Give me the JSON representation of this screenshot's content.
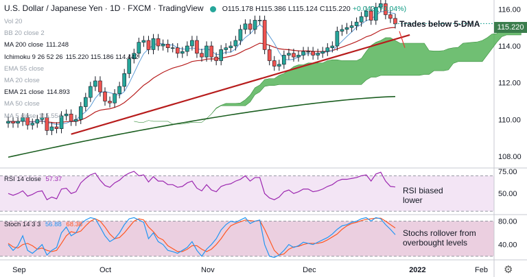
{
  "header": {
    "title": "U.S. Dollar / Japanese Yen · 1D · FXCM · TradingView",
    "open": "O115.178",
    "high": "H115.386",
    "low": "L115.124",
    "close": "C115.220",
    "change": "+0.042 (+0.04%)"
  },
  "indicators": [
    {
      "label": "Vol 20",
      "value": "",
      "faded": true
    },
    {
      "label": "BB 20 close 2",
      "value": "",
      "faded": true
    },
    {
      "label": "MA 200 close",
      "value": "111.248",
      "faded": false
    },
    {
      "label": "Ichimoku 9 26 52 26",
      "value": "115.220  115.186  114.442",
      "faded": false
    },
    {
      "label": "EMA 55 close",
      "value": "",
      "faded": true
    },
    {
      "label": "MA 20 close",
      "value": "",
      "faded": true
    },
    {
      "label": "EMA 21 close",
      "value": "114.893",
      "faded": false
    },
    {
      "label": "MA 50 close",
      "value": "",
      "faded": true
    },
    {
      "label": "MA 5 close",
      "value": "115.554",
      "faded": true
    }
  ],
  "rsi_label": "RSI 14 close",
  "rsi_value": "57.37",
  "stoch_label": "Stoch 14 3 3",
  "stoch_k": "56.88",
  "stoch_d": "68.38",
  "annotations": {
    "trades": "Trades below 5-DMA",
    "rsi1": "RSI biased",
    "rsi2": "lower",
    "stoch1": "Stochs rollover from",
    "stoch2": "overbought levels"
  },
  "last_price": "115.220",
  "colors": {
    "up": "#26a69a",
    "down": "#ef5350",
    "cloud": "#4caf50",
    "ma200": "#1b5e20",
    "ema21": "#b71c1c",
    "trendline": "#b71c1c",
    "rsi": "#9c27b0",
    "stoch_k": "#2196f3",
    "stoch_d": "#ff5722"
  },
  "chart_data": [
    {
      "type": "candlestick",
      "title": "U.S. Dollar / Japanese Yen · 1D · FXCM",
      "y_ticks": [
        108.0,
        110.0,
        112.0,
        114.0,
        116.0
      ],
      "ylim": [
        107.4,
        116.5
      ],
      "x_ticks": [
        "Sep",
        "Oct",
        "Nov",
        "Dec",
        "2022",
        "Feb"
      ],
      "close": [
        109.9,
        109.8,
        109.9,
        110.1,
        109.7,
        109.8,
        110.0,
        110.1,
        109.4,
        109.6,
        109.5,
        110.2,
        110.3,
        109.9,
        110.0,
        110.7,
        111.2,
        111.8,
        112.1,
        111.5,
        111.0,
        110.9,
        111.4,
        111.8,
        112.5,
        113.3,
        113.6,
        114.2,
        114.3,
        113.8,
        114.4,
        114.0,
        114.1,
        113.9,
        113.9,
        113.6,
        113.7,
        114.0,
        114.3,
        113.6,
        113.4,
        114.0,
        113.4,
        113.2,
        113.8,
        113.9,
        114.0,
        114.3,
        114.9,
        115.2,
        114.9,
        115.4,
        115.4,
        113.8,
        113.2,
        112.9,
        113.0,
        113.5,
        113.6,
        113.4,
        113.5,
        113.7,
        113.7,
        113.5,
        113.6,
        113.7,
        113.9,
        114.0,
        114.8,
        114.9,
        115.0,
        115.1,
        115.3,
        115.6,
        115.9,
        115.4,
        116.1,
        116.3,
        115.7,
        115.5,
        115.2
      ],
      "ema21_last": 114.893,
      "ma200_last": 111.248,
      "last": 115.22,
      "annotation": "Trades below 5-DMA"
    },
    {
      "type": "line",
      "title": "RSI 14 close",
      "y_ticks": [
        50.0,
        75.0
      ],
      "ylim": [
        27,
        78
      ],
      "values": [
        50,
        48,
        50,
        53,
        47,
        49,
        52,
        53,
        43,
        46,
        44,
        55,
        56,
        50,
        52,
        62,
        67,
        71,
        73,
        65,
        59,
        57,
        62,
        65,
        70,
        73,
        75,
        70,
        71,
        63,
        69,
        64,
        64,
        60,
        60,
        57,
        58,
        62,
        64,
        56,
        53,
        60,
        54,
        52,
        58,
        60,
        61,
        64,
        66,
        70,
        64,
        68,
        68,
        50,
        45,
        43,
        46,
        52,
        54,
        50,
        52,
        55,
        55,
        52,
        53,
        55,
        58,
        60,
        64,
        66,
        66,
        67,
        68,
        70,
        71,
        64,
        72,
        74,
        64,
        58,
        57.37
      ],
      "last": 57.37
    },
    {
      "type": "line",
      "title": "Stoch 14 3 3",
      "y_ticks": [
        40.0,
        80.0
      ],
      "ylim": [
        15,
        90
      ],
      "series": [
        {
          "name": "%K",
          "values": [
            40,
            30,
            38,
            55,
            30,
            25,
            32,
            40,
            22,
            30,
            35,
            60,
            70,
            55,
            60,
            75,
            82,
            86,
            84,
            70,
            55,
            45,
            50,
            60,
            74,
            84,
            86,
            82,
            78,
            50,
            60,
            45,
            40,
            30,
            28,
            25,
            30,
            35,
            45,
            30,
            20,
            32,
            40,
            50,
            65,
            74,
            80,
            78,
            82,
            86,
            76,
            80,
            82,
            40,
            20,
            18,
            22,
            30,
            40,
            35,
            38,
            44,
            42,
            40,
            44,
            48,
            52,
            58,
            66,
            72,
            74,
            78,
            80,
            84,
            86,
            80,
            86,
            84,
            74,
            66,
            56.88
          ]
        },
        {
          "name": "%D",
          "values": [
            42,
            36,
            34,
            40,
            42,
            38,
            32,
            34,
            30,
            28,
            30,
            42,
            55,
            62,
            60,
            63,
            72,
            80,
            84,
            80,
            70,
            58,
            50,
            52,
            60,
            70,
            80,
            84,
            82,
            70,
            62,
            52,
            48,
            38,
            33,
            28,
            28,
            32,
            38,
            38,
            32,
            28,
            32,
            40,
            50,
            62,
            72,
            76,
            79,
            82,
            81,
            80,
            81,
            66,
            48,
            30,
            22,
            24,
            32,
            36,
            37,
            40,
            42,
            42,
            42,
            44,
            48,
            53,
            58,
            66,
            72,
            76,
            78,
            81,
            83,
            84,
            85,
            85,
            80,
            74,
            68.38
          ]
        }
      ],
      "last_k": 56.88,
      "last_d": 68.38
    }
  ]
}
